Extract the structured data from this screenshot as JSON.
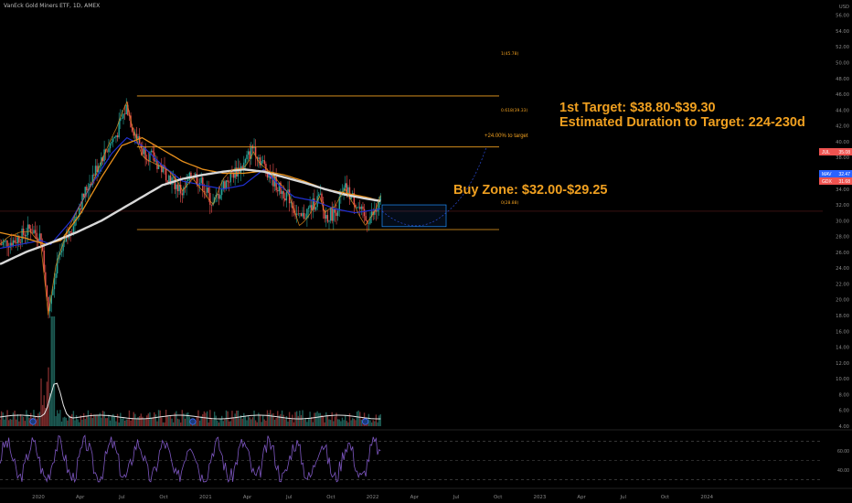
{
  "header": {
    "title": "VanEck Gold Miners ETF, 1D, AMEX"
  },
  "annotations": {
    "target_line1": "1st Target: $38.80-$39.30",
    "target_line2": "Estimated Duration to Target: 224-230d",
    "buy_zone": "Buy Zone: $32.00-$29.25",
    "pct_to_target": "+24.00% to target",
    "fib_1": "1(45.78)",
    "fib_0618": "0.618(39.33)",
    "fib_0": "0(28.88)"
  },
  "colors": {
    "price_ma_orange": "#e8901c",
    "ma_blue": "#2030d0",
    "ma_white": "#d8d8d8",
    "fib_line": "#f0a020",
    "candle_up": "#26a69a",
    "candle_down": "#ef5350",
    "rsi": "#7e57c2",
    "buy_box": "#1e90ff"
  },
  "chart_data": {
    "type": "line",
    "title": "VanEck Gold Miners ETF, 1D, AMEX",
    "x_ticks": [
      "2020",
      "Apr",
      "Jul",
      "Oct",
      "2021",
      "Apr",
      "Jul",
      "Oct",
      "2022",
      "Apr",
      "Jul",
      "Oct",
      "2023",
      "Apr",
      "Jul",
      "Oct",
      "2024"
    ],
    "y_ticks": [
      "4.00",
      "6.00",
      "8.00",
      "10.00",
      "12.00",
      "14.00",
      "16.00",
      "18.00",
      "20.00",
      "22.00",
      "24.00",
      "26.00",
      "28.00",
      "30.00",
      "32.00",
      "34.00",
      "36.00",
      "38.00",
      "40.00",
      "42.00",
      "44.00",
      "46.00",
      "48.00",
      "50.00",
      "52.00",
      "54.00",
      "56.00"
    ],
    "y_unit": "USD",
    "ylim": [
      4,
      57
    ],
    "fib_levels": [
      {
        "label": "1(45.78)",
        "value": 45.78
      },
      {
        "label": "0.618(39.33)",
        "value": 39.33
      },
      {
        "label": "0(28.88)",
        "value": 28.88
      }
    ],
    "price_labels": [
      {
        "label": "JUL",
        "value": "35.08",
        "color": "#ef5350"
      },
      {
        "label": "MAV",
        "value": "32.47",
        "color": "#2962ff"
      },
      {
        "label": "GDX",
        "value": "31.68",
        "color": "#ef5350"
      }
    ],
    "series": [
      {
        "name": "price",
        "points": [
          [
            0,
            27.0
          ],
          [
            0.03,
            27.5
          ],
          [
            0.06,
            29.0
          ],
          [
            0.08,
            28.0
          ],
          [
            0.09,
            22.0
          ],
          [
            0.095,
            18.5
          ],
          [
            0.11,
            24.0
          ],
          [
            0.14,
            29.0
          ],
          [
            0.17,
            34.0
          ],
          [
            0.2,
            38.0
          ],
          [
            0.23,
            41.0
          ],
          [
            0.25,
            44.5
          ],
          [
            0.26,
            42.0
          ],
          [
            0.28,
            39.0
          ],
          [
            0.3,
            38.0
          ],
          [
            0.32,
            36.5
          ],
          [
            0.34,
            35.0
          ],
          [
            0.36,
            33.5
          ],
          [
            0.38,
            36.0
          ],
          [
            0.4,
            34.5
          ],
          [
            0.42,
            32.0
          ],
          [
            0.44,
            34.5
          ],
          [
            0.46,
            36.0
          ],
          [
            0.48,
            37.0
          ],
          [
            0.5,
            39.5
          ],
          [
            0.51,
            38.0
          ],
          [
            0.53,
            36.0
          ],
          [
            0.55,
            34.0
          ],
          [
            0.57,
            33.0
          ],
          [
            0.59,
            30.0
          ],
          [
            0.61,
            31.5
          ],
          [
            0.63,
            33.0
          ],
          [
            0.64,
            30.5
          ],
          [
            0.66,
            31.0
          ],
          [
            0.68,
            34.0
          ],
          [
            0.7,
            32.5
          ],
          [
            0.72,
            30.0
          ],
          [
            0.74,
            31.0
          ],
          [
            0.75,
            32.5
          ]
        ]
      },
      {
        "name": "ma_blue",
        "points": [
          [
            0,
            26.5
          ],
          [
            0.08,
            27.5
          ],
          [
            0.1,
            27.0
          ],
          [
            0.14,
            30.0
          ],
          [
            0.18,
            34.5
          ],
          [
            0.22,
            38.5
          ],
          [
            0.25,
            40.5
          ],
          [
            0.28,
            39.5
          ],
          [
            0.32,
            37.0
          ],
          [
            0.36,
            35.0
          ],
          [
            0.4,
            34.5
          ],
          [
            0.44,
            34.0
          ],
          [
            0.48,
            34.5
          ],
          [
            0.52,
            36.5
          ],
          [
            0.55,
            34.5
          ],
          [
            0.58,
            33.0
          ],
          [
            0.62,
            32.5
          ],
          [
            0.66,
            31.5
          ],
          [
            0.7,
            31.0
          ],
          [
            0.75,
            31.5
          ]
        ]
      },
      {
        "name": "ma_orange",
        "points": [
          [
            0,
            28.5
          ],
          [
            0.05,
            27.8
          ],
          [
            0.09,
            27.0
          ],
          [
            0.12,
            27.5
          ],
          [
            0.16,
            31.0
          ],
          [
            0.2,
            35.5
          ],
          [
            0.24,
            39.5
          ],
          [
            0.28,
            40.5
          ],
          [
            0.32,
            39.0
          ],
          [
            0.36,
            37.5
          ],
          [
            0.4,
            36.5
          ],
          [
            0.44,
            36.0
          ],
          [
            0.48,
            36.0
          ],
          [
            0.52,
            36.3
          ],
          [
            0.56,
            35.8
          ],
          [
            0.6,
            35.0
          ],
          [
            0.64,
            34.0
          ],
          [
            0.68,
            33.5
          ],
          [
            0.72,
            33.0
          ],
          [
            0.75,
            32.5
          ]
        ]
      },
      {
        "name": "ma_white",
        "points": [
          [
            0,
            24.5
          ],
          [
            0.05,
            26.0
          ],
          [
            0.1,
            27.2
          ],
          [
            0.15,
            28.5
          ],
          [
            0.2,
            30.0
          ],
          [
            0.24,
            31.5
          ],
          [
            0.28,
            33.0
          ],
          [
            0.32,
            34.5
          ],
          [
            0.36,
            35.3
          ],
          [
            0.4,
            35.8
          ],
          [
            0.44,
            36.2
          ],
          [
            0.48,
            36.5
          ],
          [
            0.52,
            36.2
          ],
          [
            0.56,
            35.5
          ],
          [
            0.6,
            34.8
          ],
          [
            0.64,
            34.0
          ],
          [
            0.68,
            33.3
          ],
          [
            0.72,
            32.8
          ],
          [
            0.75,
            32.5
          ]
        ]
      }
    ],
    "rsi": {
      "levels": [
        70,
        50,
        30
      ],
      "tick_labels": [
        "40.00",
        "60.00"
      ]
    },
    "grid": false,
    "legend": "none"
  }
}
